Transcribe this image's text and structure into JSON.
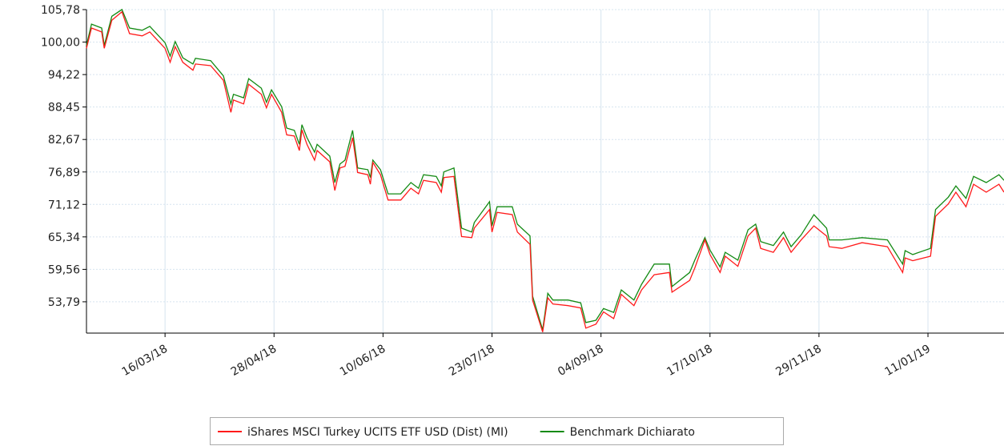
{
  "chart_data": {
    "type": "line",
    "x": [
      "2018-02-13",
      "2018-02-15",
      "2018-02-19",
      "2018-02-20",
      "2018-02-23",
      "2018-02-27",
      "2018-03-02",
      "2018-03-07",
      "2018-03-10",
      "2018-03-16",
      "2018-03-18",
      "2018-03-20",
      "2018-03-23",
      "2018-03-27",
      "2018-03-28",
      "2018-04-03",
      "2018-04-08",
      "2018-04-11",
      "2018-04-12",
      "2018-04-16",
      "2018-04-18",
      "2018-04-23",
      "2018-04-25",
      "2018-04-27",
      "2018-05-01",
      "2018-05-03",
      "2018-05-06",
      "2018-05-08",
      "2018-05-09",
      "2018-05-11",
      "2018-05-14",
      "2018-05-15",
      "2018-05-20",
      "2018-05-22",
      "2018-05-24",
      "2018-05-26",
      "2018-05-29",
      "2018-05-31",
      "2018-06-04",
      "2018-06-05",
      "2018-06-06",
      "2018-06-09",
      "2018-06-12",
      "2018-06-17",
      "2018-06-21",
      "2018-06-24",
      "2018-06-26",
      "2018-07-01",
      "2018-07-03",
      "2018-07-04",
      "2018-07-08",
      "2018-07-11",
      "2018-07-15",
      "2018-07-16",
      "2018-07-22",
      "2018-07-23",
      "2018-07-25",
      "2018-07-31",
      "2018-08-02",
      "2018-08-07",
      "2018-08-08",
      "2018-08-12",
      "2018-08-14",
      "2018-08-16",
      "2018-08-22",
      "2018-08-27",
      "2018-08-29",
      "2018-09-02",
      "2018-09-05",
      "2018-09-09",
      "2018-09-12",
      "2018-09-17",
      "2018-09-20",
      "2018-09-25",
      "2018-10-01",
      "2018-10-02",
      "2018-10-09",
      "2018-10-11",
      "2018-10-15",
      "2018-10-17",
      "2018-10-21",
      "2018-10-23",
      "2018-10-28",
      "2018-11-01",
      "2018-11-04",
      "2018-11-06",
      "2018-11-11",
      "2018-11-15",
      "2018-11-18",
      "2018-11-22",
      "2018-11-27",
      "2018-12-02",
      "2018-12-03",
      "2018-12-08",
      "2018-12-16",
      "2018-12-26",
      "2019-01-01",
      "2019-01-02",
      "2019-01-05",
      "2019-01-12",
      "2019-01-14",
      "2019-01-19",
      "2019-01-22",
      "2019-01-26",
      "2019-01-29",
      "2019-02-03",
      "2019-02-08",
      "2019-02-10"
    ],
    "series": [
      {
        "name": "iShares MSCI Turkey UCITS ETF USD (Dist) (MI)",
        "color": "#ff1a1a",
        "values": [
          98.9,
          102.5,
          101.8,
          98.9,
          103.9,
          105.4,
          101.5,
          101.1,
          101.8,
          98.9,
          96.4,
          99.2,
          96.4,
          95.0,
          96.1,
          95.8,
          93.2,
          87.5,
          89.7,
          89.0,
          92.5,
          90.7,
          88.3,
          90.7,
          87.5,
          83.5,
          83.3,
          80.7,
          84.4,
          81.8,
          79.0,
          80.7,
          78.7,
          73.6,
          77.6,
          77.9,
          83.0,
          76.8,
          76.4,
          74.7,
          78.6,
          76.4,
          71.9,
          71.9,
          74.0,
          73.0,
          75.4,
          75.0,
          73.3,
          75.9,
          76.1,
          65.4,
          65.2,
          66.9,
          70.2,
          66.2,
          69.7,
          69.3,
          66.2,
          64.0,
          54.1,
          48.4,
          54.5,
          53.4,
          53.1,
          52.7,
          49.1,
          49.8,
          52.0,
          50.8,
          55.1,
          53.1,
          55.9,
          58.6,
          59.0,
          55.5,
          57.6,
          59.8,
          64.8,
          62.2,
          59.0,
          61.9,
          60.1,
          65.5,
          66.9,
          63.3,
          62.6,
          65.2,
          62.6,
          64.8,
          67.3,
          65.5,
          63.6,
          63.3,
          64.3,
          63.6,
          59.0,
          61.6,
          61.1,
          61.9,
          69.0,
          71.2,
          73.3,
          70.7,
          74.7,
          73.3,
          74.7,
          73.3
        ]
      },
      {
        "name": "Benchmark Dichiarato",
        "color": "#138a13",
        "values": [
          99.4,
          103.2,
          102.5,
          99.4,
          104.6,
          105.8,
          102.5,
          102.1,
          102.8,
          99.9,
          97.5,
          100.1,
          97.2,
          96.1,
          97.1,
          96.7,
          94.0,
          89.0,
          90.7,
          90.1,
          93.5,
          91.8,
          89.3,
          91.5,
          88.5,
          84.7,
          84.3,
          81.8,
          85.3,
          83.0,
          80.4,
          81.8,
          79.7,
          75.0,
          78.3,
          79.0,
          84.3,
          77.6,
          77.3,
          75.9,
          79.0,
          77.3,
          73.0,
          73.0,
          75.0,
          74.0,
          76.4,
          76.1,
          74.4,
          76.9,
          77.6,
          66.9,
          66.2,
          67.9,
          71.6,
          67.3,
          70.7,
          70.7,
          67.6,
          65.5,
          54.8,
          48.8,
          55.3,
          54.1,
          54.1,
          53.6,
          50.1,
          50.5,
          52.6,
          51.9,
          55.9,
          54.1,
          56.9,
          60.5,
          60.5,
          56.5,
          59.0,
          61.2,
          65.2,
          63.0,
          60.0,
          62.6,
          61.2,
          66.6,
          67.6,
          64.5,
          63.8,
          66.2,
          63.6,
          65.7,
          69.3,
          66.9,
          64.8,
          64.8,
          65.2,
          64.8,
          60.5,
          62.9,
          62.2,
          63.3,
          70.2,
          72.4,
          74.4,
          72.2,
          76.1,
          75.0,
          76.4,
          75.4
        ]
      }
    ],
    "xlim": [
      "2018-02-13",
      "2019-02-10"
    ],
    "xticks": [
      {
        "value": "2018-03-16",
        "label": "16/03/18"
      },
      {
        "value": "2018-04-28",
        "label": "28/04/18"
      },
      {
        "value": "2018-06-10",
        "label": "10/06/18"
      },
      {
        "value": "2018-07-23",
        "label": "23/07/18"
      },
      {
        "value": "2018-09-04",
        "label": "04/09/18"
      },
      {
        "value": "2018-10-17",
        "label": "17/10/18"
      },
      {
        "value": "2018-11-29",
        "label": "29/11/18"
      },
      {
        "value": "2019-01-11",
        "label": "11/01/19"
      }
    ],
    "ylim": [
      48.22,
      105.78
    ],
    "yticks": [
      {
        "value": 53.79,
        "label": "53,79"
      },
      {
        "value": 59.56,
        "label": "59,56"
      },
      {
        "value": 65.34,
        "label": "65,34"
      },
      {
        "value": 71.12,
        "label": "71,12"
      },
      {
        "value": 76.89,
        "label": "76,89"
      },
      {
        "value": 82.67,
        "label": "82,67"
      },
      {
        "value": 88.45,
        "label": "88,45"
      },
      {
        "value": 94.22,
        "label": "94,22"
      },
      {
        "value": 100.0,
        "label": "100,00"
      },
      {
        "value": 105.78,
        "label": "105,78"
      }
    ],
    "grid": true,
    "legend": "bottom"
  }
}
